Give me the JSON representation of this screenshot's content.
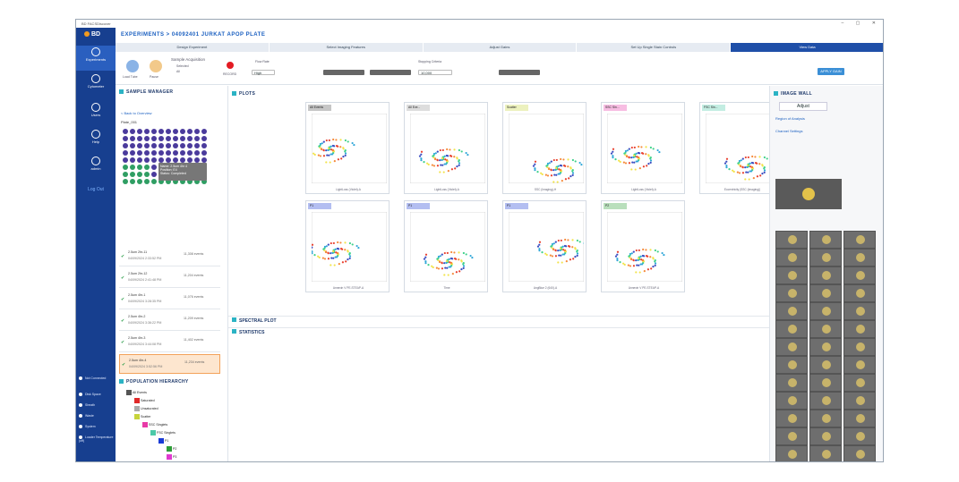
{
  "window": {
    "title": "BD FACSDiscover"
  },
  "header": {
    "crumb": "EXPERIMENTS > 04092401 JURKAT APOP PLATE"
  },
  "nav": {
    "items": [
      "Experiments",
      "Cytometer",
      "Users",
      "Help",
      "admin"
    ],
    "logout": "Log Out",
    "system": [
      "Not Connected",
      "Disk Space",
      "Sheath",
      "Waste",
      "System",
      "Loader Temperature (off)"
    ]
  },
  "steps": [
    "Design Experiment",
    "Select Imaging Features",
    "Adjust Gains",
    "Set Up Single Stain Controls",
    "View Data"
  ],
  "toolbar": {
    "load": "Load Tube",
    "pause": "Pause",
    "acq_label": "Sample Acquisition",
    "opt1": "Selected",
    "opt2": "All",
    "record": "RECORD",
    "flow": "Flow Rate",
    "flow_val": "High",
    "apply": "APPLY GAIN",
    "stopping": "Stopping Criteria",
    "events": "10,000"
  },
  "sample": {
    "title": "SAMPLE MANAGER",
    "back": "< Back to Overview",
    "plate": "Plate_001",
    "tooltip": [
      "Name: 2.5um 4hr 4",
      "Position: E4",
      "Status: Completed"
    ],
    "list": [
      {
        "name": "2.5um 2hr-11",
        "date": "04/09/2024 2:33:52 PM",
        "ev": "11,308 events"
      },
      {
        "name": "2.5um 2hr-12",
        "date": "04/09/2024 2:41:48 PM",
        "ev": "11,204 events"
      },
      {
        "name": "2.5um 4hr-1",
        "date": "04/09/2024 3:28:35 PM",
        "ev": "11,076 events"
      },
      {
        "name": "2.5um 4hr-2",
        "date": "04/09/2024 3:36:22 PM",
        "ev": "11,209 events"
      },
      {
        "name": "2.5um 4hr-3",
        "date": "04/09/2024 3:44:08 PM",
        "ev": "11,402 events"
      },
      {
        "name": "2.5um 4hr-4",
        "date": "04/09/2024 3:52:56 PM",
        "ev": "11,234 events"
      }
    ]
  },
  "hierarchy": {
    "title": "POPULATION HIERARCHY",
    "nodes": [
      {
        "n": "All Events",
        "c": "#555555",
        "d": 0
      },
      {
        "n": "Saturated",
        "c": "#e02a2a",
        "d": 1
      },
      {
        "n": "Unsaturated",
        "c": "#aaaaaa",
        "d": 1
      },
      {
        "n": "Scatter",
        "c": "#c7d43b",
        "d": 1
      },
      {
        "n": "SSC Singlets",
        "c": "#e83aa7",
        "d": 2
      },
      {
        "n": "FSC Singlets",
        "c": "#4cc9a8",
        "d": 3
      },
      {
        "n": "P1",
        "c": "#1a3bd6",
        "d": 4
      },
      {
        "n": "P2",
        "c": "#2e9e37",
        "d": 5
      },
      {
        "n": "P3",
        "c": "#e03ad0",
        "d": 5
      }
    ]
  },
  "plots": {
    "title": "PLOTS",
    "spectral": "SPECTRAL PLOT",
    "statistics": "STATISTICS",
    "items": [
      {
        "t": "All Events",
        "c": "#555555",
        "x": "LightLoss (Violet)-A"
      },
      {
        "t": "All Eve...",
        "c": "#999999",
        "x": "LightLoss (Violet)-A"
      },
      {
        "t": "Scatter",
        "c": "#c7d43b",
        "x": "SSC (Imaging)-H"
      },
      {
        "t": "SSC Sin...",
        "c": "#e83aa7",
        "x": "LightLoss (Violet)-A"
      },
      {
        "t": "FSC Sin...",
        "c": "#4cc9a8",
        "x": "Eccentricity (SSC (Imaging))"
      },
      {
        "t": "P1",
        "c": "#1a3bd6",
        "x": "Annexin V PE-STEAP-A"
      },
      {
        "t": "P1",
        "c": "#1a3bd6",
        "x": "Time"
      },
      {
        "t": "P1",
        "c": "#1a3bd6",
        "x": "AngBlue 2 (640)-A"
      },
      {
        "t": "P2",
        "c": "#2e9e37",
        "x": "Annexin V PE-STEAP-A"
      }
    ]
  },
  "imagewall": {
    "title": "IMAGE WALL",
    "adjust": "Adjust",
    "roi": "Region of Analysis",
    "channel": "Channel Settings"
  },
  "colors": {
    "nav": "#173f8f",
    "accent": "#1a5fc0"
  }
}
